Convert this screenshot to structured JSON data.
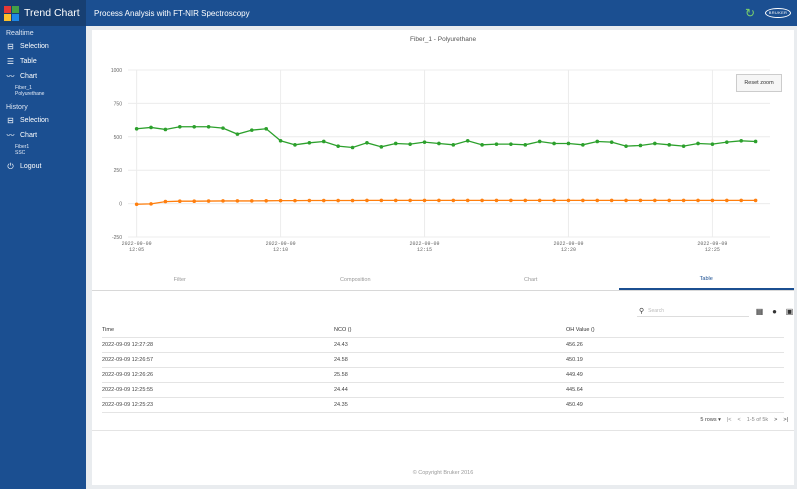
{
  "app": {
    "title": "Trend Chart",
    "header_title": "Process Analysis with FT-NIR Spectroscopy",
    "brand_logo_text": "BRUKER",
    "logo_colors": [
      "#e53935",
      "#43a047",
      "#fbc02d",
      "#1e88e5"
    ]
  },
  "sidebar": {
    "realtime_title": "Realtime",
    "realtime_items": [
      {
        "label": "Selection",
        "icon": "selection-icon"
      },
      {
        "label": "Table",
        "icon": "list-icon"
      },
      {
        "label": "Chart",
        "icon": "line-chart-icon"
      }
    ],
    "realtime_chart_sub": [
      "Fiber_1",
      "Polyurethane"
    ],
    "history_title": "History",
    "history_items": [
      {
        "label": "Selection",
        "icon": "selection-icon"
      },
      {
        "label": "Chart",
        "icon": "line-chart-icon"
      }
    ],
    "history_chart_sub": [
      "Fiber1",
      "SSC"
    ],
    "logout_label": "Logout"
  },
  "chart": {
    "reset_zoom_label": "Reset zoom",
    "colors": {
      "series1": "#2ca02c",
      "series2": "#ff7f0e",
      "grid": "#ececec"
    }
  },
  "chart_data": {
    "type": "line",
    "title": "Fiber_1 - Polyurethane",
    "xlabel": "",
    "ylabel": "",
    "ylim": [
      -250,
      1000
    ],
    "yticks": [
      1000,
      750,
      500,
      250,
      0,
      -250
    ],
    "xticks": [
      {
        "x": 0,
        "label1": "2022-09-09",
        "label2": "12:05"
      },
      {
        "x": 5,
        "label1": "2022-09-09",
        "label2": "12:10"
      },
      {
        "x": 10,
        "label1": "2022-09-09",
        "label2": "12:15"
      },
      {
        "x": 15,
        "label1": "2022-09-09",
        "label2": "12:20"
      },
      {
        "x": 20,
        "label1": "2022-09-09",
        "label2": "12:25"
      }
    ],
    "xlim": [
      -0.3,
      22
    ],
    "x": [
      0,
      0.5,
      1,
      1.5,
      2,
      2.5,
      3,
      3.5,
      4,
      4.5,
      5,
      5.5,
      6,
      6.5,
      7,
      7.5,
      8,
      8.5,
      9,
      9.5,
      10,
      10.5,
      11,
      11.5,
      12,
      12.5,
      13,
      13.5,
      14,
      14.5,
      15,
      15.5,
      16,
      16.5,
      17,
      17.5,
      18,
      18.5,
      19,
      19.5,
      20,
      20.5,
      21,
      21.5
    ],
    "series": [
      {
        "values": [
          560,
          570,
          555,
          575,
          575,
          575,
          565,
          520,
          550,
          560,
          470,
          440,
          455,
          465,
          430,
          420,
          455,
          425,
          450,
          445,
          460,
          450,
          440,
          470,
          440,
          445,
          445,
          440,
          465,
          450,
          450,
          440,
          465,
          460,
          430,
          435,
          450,
          440,
          430,
          450,
          445,
          460,
          470,
          465
        ]
      },
      {
        "values": [
          -5,
          -2,
          15,
          18,
          18,
          19,
          20,
          20,
          20,
          21,
          22,
          22,
          23,
          23,
          23,
          23,
          24,
          24,
          24,
          24,
          24,
          24,
          24,
          24,
          24,
          24,
          24,
          24,
          24,
          24,
          24,
          24,
          24,
          24,
          24,
          24,
          24,
          24,
          24,
          24,
          24,
          24,
          24,
          24
        ]
      }
    ]
  },
  "tabs": [
    "Filter",
    "Composition",
    "Chart",
    "Table"
  ],
  "active_tab": 3,
  "table_view": {
    "search_placeholder": "Search",
    "tool_icons": [
      "grid-icon",
      "info-icon",
      "export-icon"
    ],
    "columns": [
      "Time",
      "NCO ()",
      "OH Value ()"
    ],
    "rows": [
      [
        "2022-09-09 12:27:28",
        "24.43",
        "456.26"
      ],
      [
        "2022-09-09 12:26:57",
        "24.58",
        "450.19"
      ],
      [
        "2022-09-09 12:26:26",
        "25.58",
        "449.49"
      ],
      [
        "2022-09-09 12:25:55",
        "24.44",
        "445.64"
      ],
      [
        "2022-09-09 12:25:23",
        "24.35",
        "450.49"
      ]
    ],
    "pagination": {
      "rows_per_page": "5 rows ▾",
      "first": "|<",
      "prev": "<",
      "range": "1-5 of 5k",
      "next": ">",
      "last": ">|"
    }
  },
  "footer": "© Copyright Bruker 2016"
}
